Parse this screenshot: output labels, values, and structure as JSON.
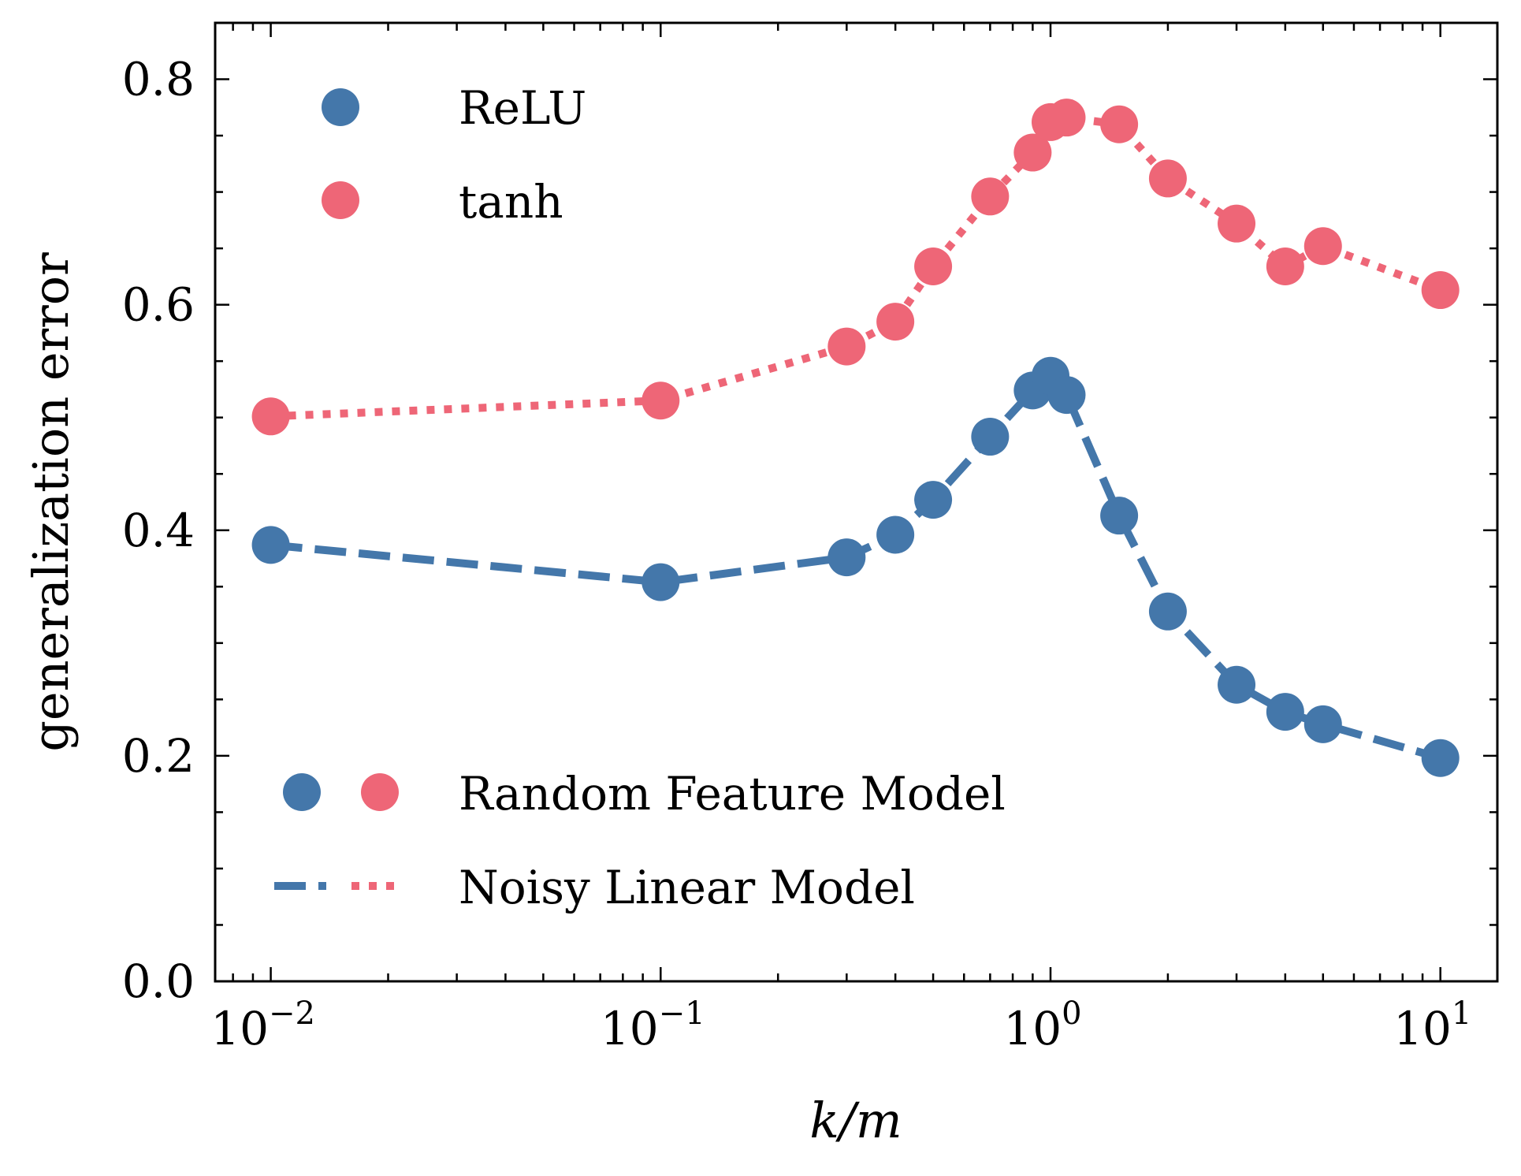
{
  "chart_data": {
    "type": "line",
    "xscale": "log",
    "xlabel": "k/m",
    "ylabel": "generalization error",
    "xlim": [
      0.0072,
      14.0
    ],
    "ylim": [
      0.0,
      0.85
    ],
    "x_ticks": [
      {
        "value": 0.01,
        "base": "10",
        "exp": "−2"
      },
      {
        "value": 0.1,
        "base": "10",
        "exp": "−1"
      },
      {
        "value": 1,
        "base": "10",
        "exp": "0"
      },
      {
        "value": 10,
        "base": "10",
        "exp": "1"
      }
    ],
    "y_ticks": [
      {
        "value": 0.0,
        "label": "0.0"
      },
      {
        "value": 0.2,
        "label": "0.2"
      },
      {
        "value": 0.4,
        "label": "0.4"
      },
      {
        "value": 0.6,
        "label": "0.6"
      },
      {
        "value": 0.8,
        "label": "0.8"
      }
    ],
    "series": [
      {
        "name": "ReLU",
        "color": "#4477aa",
        "line_style": "dashed",
        "marker_x": [
          0.01,
          0.1,
          0.3,
          0.4,
          0.5,
          0.7,
          0.9,
          1.0,
          1.1,
          1.5,
          2.0,
          3.0,
          4.0,
          5.0,
          10.0
        ],
        "marker_y": [
          0.387,
          0.354,
          0.376,
          0.396,
          0.427,
          0.483,
          0.524,
          0.537,
          0.52,
          0.413,
          0.328,
          0.263,
          0.239,
          0.228,
          0.198
        ],
        "line_x": [
          0.01,
          0.1,
          0.3,
          0.4,
          0.5,
          0.7,
          0.9,
          1.0,
          1.1,
          1.5,
          2.0,
          3.0,
          4.0,
          5.0,
          10.0
        ],
        "line_y": [
          0.387,
          0.354,
          0.376,
          0.396,
          0.427,
          0.483,
          0.524,
          0.537,
          0.52,
          0.413,
          0.328,
          0.263,
          0.239,
          0.228,
          0.198
        ]
      },
      {
        "name": "tanh",
        "color": "#ee6677",
        "line_style": "dotted",
        "marker_x": [
          0.01,
          0.1,
          0.3,
          0.4,
          0.5,
          0.7,
          0.9,
          1.0,
          1.1,
          1.5,
          2.0,
          3.0,
          4.0,
          5.0,
          10.0
        ],
        "marker_y": [
          0.501,
          0.515,
          0.563,
          0.585,
          0.634,
          0.696,
          0.735,
          0.762,
          0.766,
          0.76,
          0.712,
          0.672,
          0.634,
          0.652,
          0.613
        ],
        "line_x": [
          0.01,
          0.1,
          0.3,
          0.4,
          0.5,
          0.7,
          0.9,
          1.0,
          1.1,
          1.5,
          2.0,
          3.0,
          4.0,
          5.0,
          10.0
        ],
        "line_y": [
          0.501,
          0.515,
          0.563,
          0.585,
          0.634,
          0.696,
          0.735,
          0.762,
          0.766,
          0.76,
          0.712,
          0.672,
          0.634,
          0.652,
          0.613
        ]
      }
    ],
    "legend_top": {
      "placement": "top-left",
      "entries": [
        {
          "label": "ReLU",
          "color": "#4477aa"
        },
        {
          "label": "tanh",
          "color": "#ee6677"
        }
      ]
    },
    "legend_bottom": {
      "placement": "bottom-left",
      "entries": [
        {
          "label": "Random Feature Model",
          "kind": "markers"
        },
        {
          "label": "Noisy Linear Model",
          "kind": "lines"
        }
      ]
    }
  }
}
